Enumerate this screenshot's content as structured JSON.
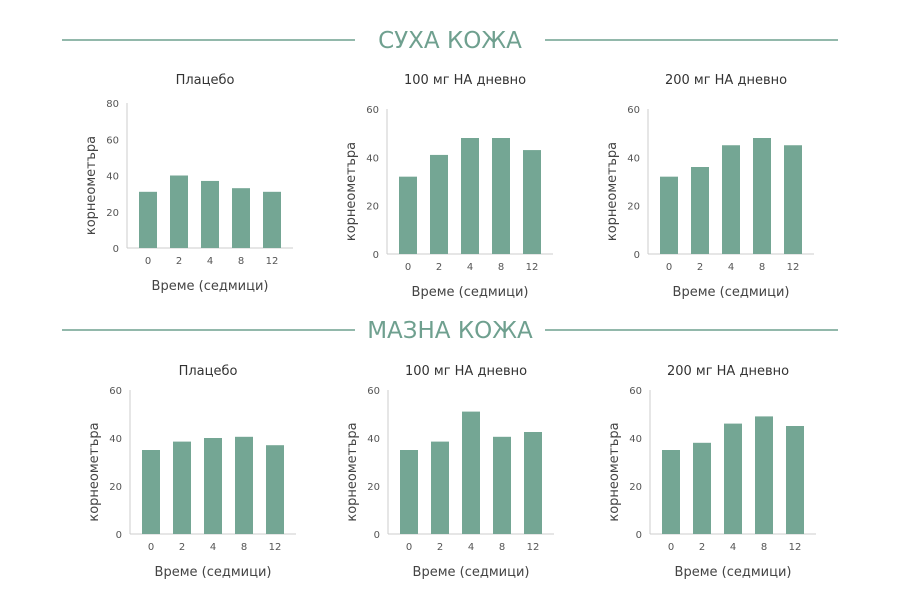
{
  "colors": {
    "bar": "#74a694",
    "accent": "#6fa08f",
    "axis": "#cccccc"
  },
  "sections": [
    {
      "title": "СУХА КОЖА"
    },
    {
      "title": "МАЗНА КОЖА"
    }
  ],
  "chart_data": [
    {
      "type": "bar",
      "section": "СУХА КОЖА",
      "title": "Плацебо",
      "categories": [
        "0",
        "2",
        "4",
        "8",
        "12"
      ],
      "values": [
        31,
        40,
        37,
        33,
        31
      ],
      "xlabel": "Време (седмици)",
      "ylabel": "корнеометъра",
      "ylim": [
        0,
        80
      ],
      "yticks": [
        0,
        20,
        40,
        60,
        80
      ]
    },
    {
      "type": "bar",
      "section": "СУХА КОЖА",
      "title": "100 мг НА дневно",
      "categories": [
        "0",
        "2",
        "4",
        "8",
        "12"
      ],
      "values": [
        32,
        41,
        48,
        48,
        43
      ],
      "xlabel": "Време (седмици)",
      "ylabel": "корнеометъра",
      "ylim": [
        0,
        60
      ],
      "yticks": [
        0,
        20,
        40,
        60
      ]
    },
    {
      "type": "bar",
      "section": "СУХА КОЖА",
      "title": "200 мг НА дневно",
      "categories": [
        "0",
        "2",
        "4",
        "8",
        "12"
      ],
      "values": [
        32,
        36,
        45,
        48,
        45
      ],
      "xlabel": "Време (седмици)",
      "ylabel": "корнеометъра",
      "ylim": [
        0,
        60
      ],
      "yticks": [
        0,
        20,
        40,
        60
      ]
    },
    {
      "type": "bar",
      "section": "МАЗНА КОЖА",
      "title": "Плацебо",
      "categories": [
        "0",
        "2",
        "4",
        "8",
        "12"
      ],
      "values": [
        35,
        38.5,
        40,
        40.5,
        37
      ],
      "xlabel": "Време (седмици)",
      "ylabel": "корнеометъра",
      "ylim": [
        0,
        60
      ],
      "yticks": [
        0,
        20,
        40,
        60
      ]
    },
    {
      "type": "bar",
      "section": "МАЗНА КОЖА",
      "title": "100 мг НА дневно",
      "categories": [
        "0",
        "2",
        "4",
        "8",
        "12"
      ],
      "values": [
        35,
        38.5,
        51,
        40.5,
        42.5
      ],
      "xlabel": "Време (седмици)",
      "ylabel": "корнеометъра",
      "ylim": [
        0,
        60
      ],
      "yticks": [
        0,
        20,
        40,
        60
      ]
    },
    {
      "type": "bar",
      "section": "МАЗНА КОЖА",
      "title": "200 мг НА дневно",
      "categories": [
        "0",
        "2",
        "4",
        "8",
        "12"
      ],
      "values": [
        35,
        38,
        46,
        49,
        45
      ],
      "xlabel": "Време (седмици)",
      "ylabel": "корнеометъра",
      "ylim": [
        0,
        60
      ],
      "yticks": [
        0,
        20,
        40,
        60
      ]
    }
  ]
}
